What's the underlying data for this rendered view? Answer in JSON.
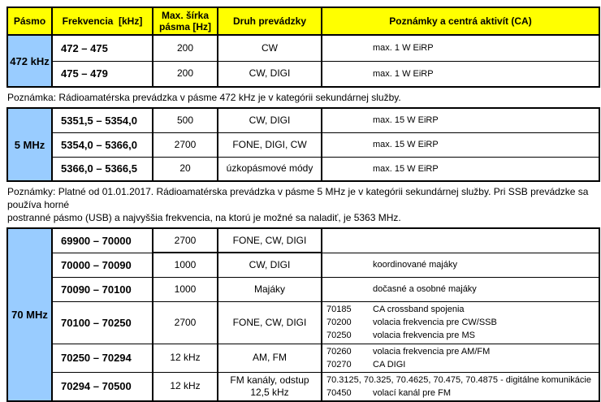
{
  "colors": {
    "header_bg": "#FFFF00",
    "band_bg": "#99CCFF",
    "border": "#000000"
  },
  "header": {
    "columns": [
      "Pásmo",
      "Frekvencia  [kHz]",
      "Max. šírka pásma [Hz]",
      "Druh prevádzky",
      "Poznámky a centrá aktivít (CA)"
    ]
  },
  "sections": [
    {
      "band": "472 kHz",
      "rows": [
        {
          "freq": "472 – 475",
          "bw": "200",
          "mode": "CW",
          "notes": [
            {
              "f": "",
              "t": "max. 1 W EiRP"
            }
          ]
        },
        {
          "freq": "475 – 479",
          "bw": "200",
          "mode": "CW, DIGI",
          "notes": [
            {
              "f": "",
              "t": "max. 1 W EiRP"
            }
          ]
        }
      ],
      "footnote": "Poznámka: Rádioamatérska prevádzka v pásme 472 kHz je v kategórii sekundárnej služby."
    },
    {
      "band": "5 MHz",
      "rows": [
        {
          "freq": "5351,5 – 5354,0",
          "bw": "500",
          "mode": "CW, DIGI",
          "notes": [
            {
              "f": "",
              "t": "max. 15 W EiRP"
            }
          ]
        },
        {
          "freq": "5354,0 – 5366,0",
          "bw": "2700",
          "mode": "FONE, DIGI, CW",
          "notes": [
            {
              "f": "",
              "t": "max. 15 W EiRP"
            }
          ]
        },
        {
          "freq": "5366,0 – 5366,5",
          "bw": "20",
          "mode": "úzkopásmové módy",
          "notes": [
            {
              "f": "",
              "t": "max. 15 W EiRP"
            }
          ]
        }
      ],
      "footnote": "Poznámky: Platné od 01.01.2017. Rádioamatérska prevádzka v pásme 5 MHz je v kategórii sekundárnej služby. Pri SSB prevádzke sa používa horné\npostranné pásmo (USB) a najvyššia frekvencia, na ktorú je možné sa naladiť, je 5363 MHz."
    },
    {
      "band": "70 MHz",
      "rows": [
        {
          "freq": "69900 – 70000",
          "bw": "2700",
          "mode": "FONE, CW, DIGI",
          "notes": []
        },
        {
          "freq": "70000 – 70090",
          "bw": "1000",
          "mode": "CW, DIGI",
          "notes": [
            {
              "f": "",
              "t": "koordinované majáky"
            }
          ]
        },
        {
          "freq": "70090 – 70100",
          "bw": "1000",
          "mode": "Majáky",
          "notes": [
            {
              "f": "",
              "t": "dočasné a osobné majáky"
            }
          ]
        },
        {
          "freq": "70100 – 70250",
          "bw": "2700",
          "mode": "FONE, CW, DIGI",
          "notes": [
            {
              "f": "70185",
              "t": "CA crossband spojenia"
            },
            {
              "f": "70200",
              "t": "volacia frekvencia pre CW/SSB"
            },
            {
              "f": "70250",
              "t": "volacia frekvencia pre MS"
            }
          ]
        },
        {
          "freq": "70250 – 70294",
          "bw": "12 kHz",
          "mode": "AM, FM",
          "notes": [
            {
              "f": "70260",
              "t": "volacia frekvencia pre AM/FM"
            },
            {
              "f": "70270",
              "t": "CA DIGI"
            }
          ]
        },
        {
          "freq": "70294 – 70500",
          "bw": "12 kHz",
          "mode": "FM kanály, odstup 12,5 kHz",
          "notes": [
            {
              "full": "70.3125, 70.325, 70.4625, 70.475, 70.4875 - digitálne komunikácie"
            },
            {
              "f": "70450",
              "t": "volací kanál pre FM"
            }
          ]
        }
      ],
      "footnote": ""
    }
  ]
}
